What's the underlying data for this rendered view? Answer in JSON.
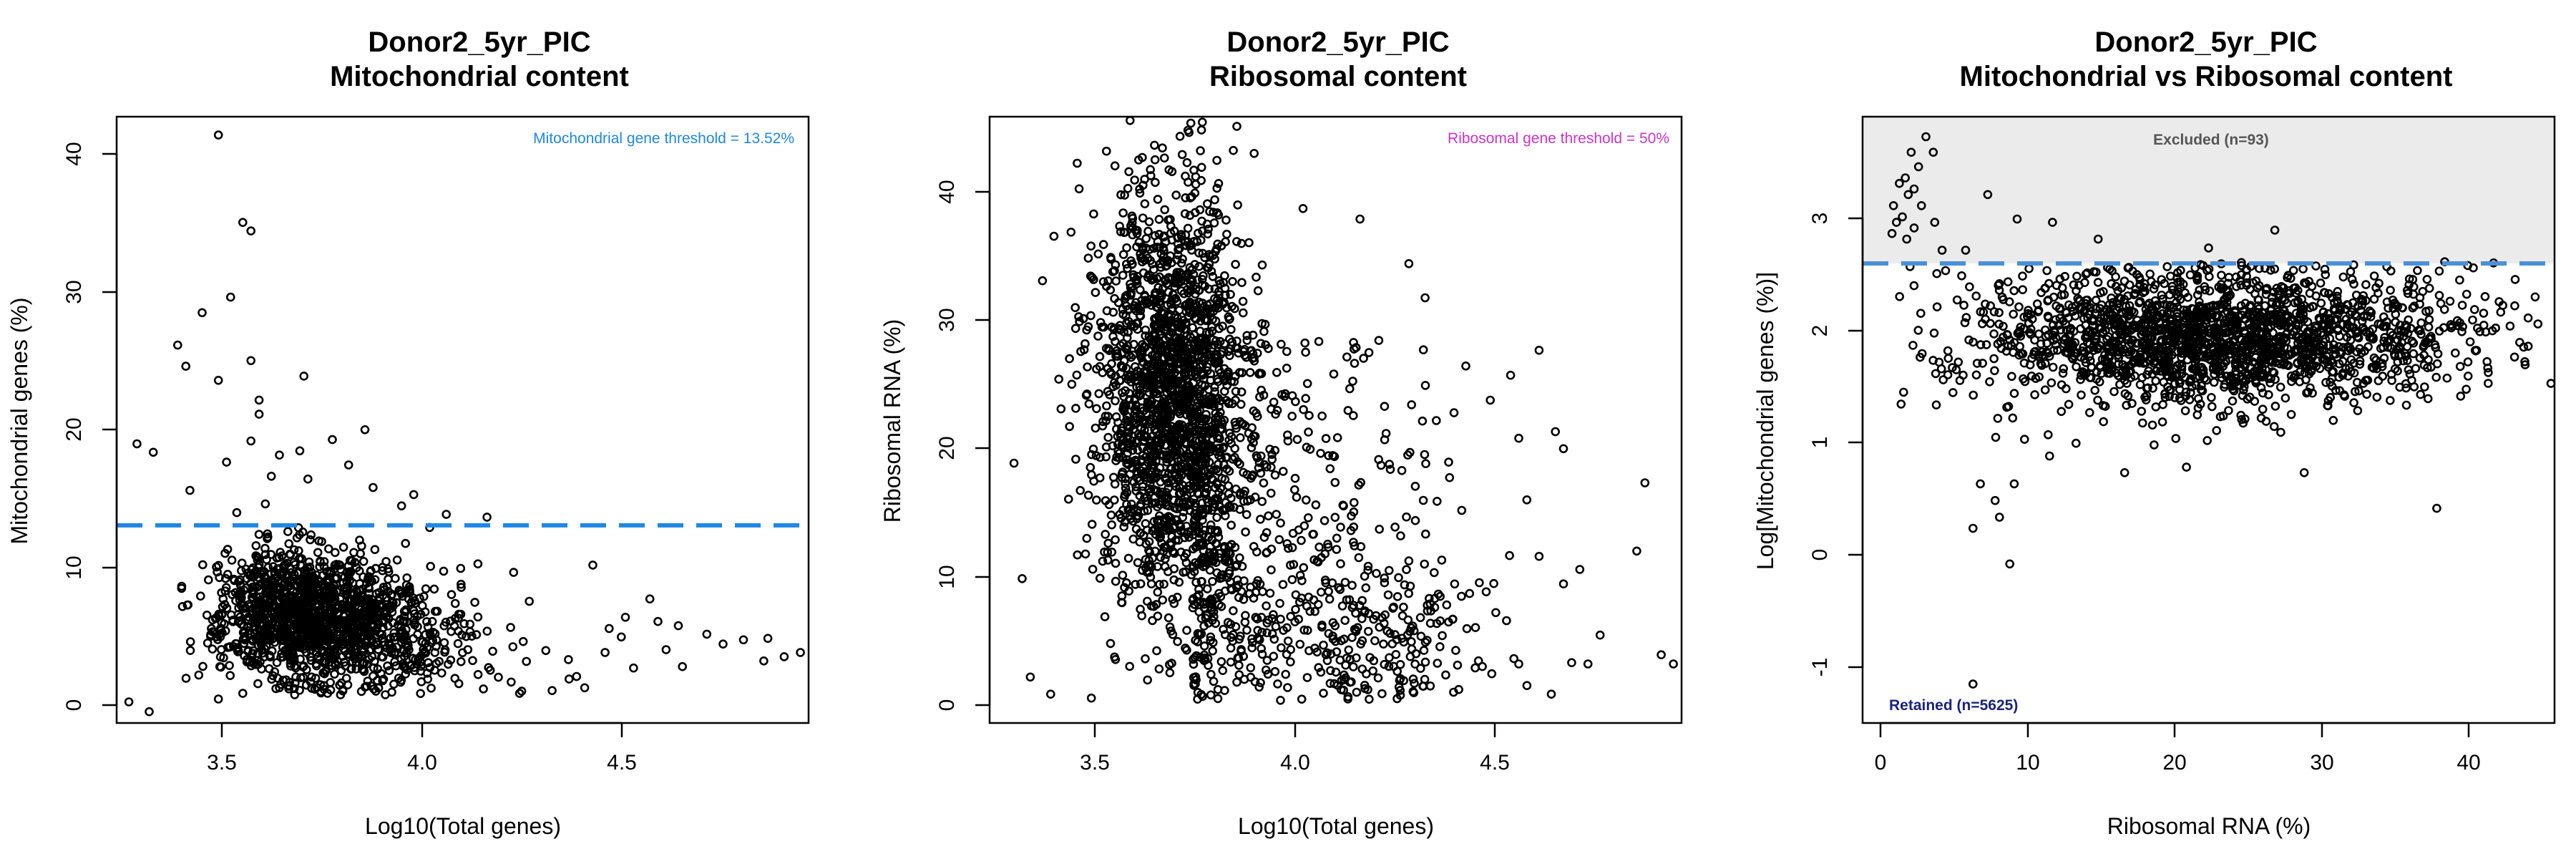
{
  "chart_data": [
    {
      "type": "scatter",
      "title": "Donor2_5yr_PIC",
      "subtitle": "Mitochondrial content",
      "xlabel": "Log10(Total genes)",
      "ylabel": "Mitochondrial genes (%)",
      "xlim": [
        3.25,
        4.95
      ],
      "ylim": [
        -0.5,
        42.5
      ],
      "xticks": [
        "3.5",
        "4.0",
        "4.5"
      ],
      "yticks": [
        "0",
        "10",
        "20",
        "30",
        "40"
      ],
      "threshold": {
        "y": 13.52,
        "label": "Mitochondrial gene threshold = 13.52%",
        "color": "#1E88E5"
      },
      "cloud": {
        "n": 1500,
        "x_center": 3.66,
        "x_spread": 0.2,
        "y_center": 7.3,
        "y_spread": 2.3
      },
      "points": [
        [
          3.5,
          41.2
        ],
        [
          3.56,
          35.0
        ],
        [
          3.58,
          34.4
        ],
        [
          3.53,
          29.7
        ],
        [
          3.46,
          28.6
        ],
        [
          3.4,
          26.3
        ],
        [
          3.58,
          25.2
        ],
        [
          3.42,
          24.8
        ],
        [
          3.71,
          24.1
        ],
        [
          3.5,
          23.8
        ],
        [
          3.6,
          22.4
        ],
        [
          3.6,
          21.4
        ],
        [
          3.86,
          20.3
        ],
        [
          3.3,
          19.3
        ],
        [
          3.58,
          19.5
        ],
        [
          3.78,
          19.6
        ],
        [
          3.34,
          18.7
        ],
        [
          3.65,
          18.5
        ],
        [
          3.7,
          18.8
        ],
        [
          3.52,
          18.0
        ],
        [
          3.82,
          17.8
        ],
        [
          3.63,
          17.0
        ],
        [
          3.72,
          16.8
        ],
        [
          3.43,
          16.0
        ],
        [
          3.88,
          16.2
        ],
        [
          3.98,
          15.7
        ],
        [
          4.16,
          14.1
        ],
        [
          4.06,
          14.3
        ],
        [
          3.95,
          14.9
        ],
        [
          3.28,
          1.0
        ],
        [
          3.33,
          0.3
        ],
        [
          3.5,
          1.2
        ],
        [
          3.56,
          1.6
        ],
        [
          3.65,
          2.0
        ],
        [
          3.8,
          1.5
        ],
        [
          4.24,
          1.6
        ],
        [
          4.32,
          1.8
        ],
        [
          4.4,
          2.0
        ],
        [
          4.42,
          10.7
        ],
        [
          4.56,
          8.3
        ],
        [
          4.49,
          5.6
        ],
        [
          4.58,
          6.7
        ],
        [
          4.63,
          6.4
        ],
        [
          4.7,
          5.8
        ],
        [
          4.74,
          5.1
        ],
        [
          4.79,
          5.4
        ],
        [
          4.85,
          5.5
        ],
        [
          4.84,
          3.9
        ],
        [
          4.89,
          4.2
        ],
        [
          4.93,
          4.5
        ],
        [
          4.5,
          7.0
        ],
        [
          4.45,
          4.5
        ],
        [
          4.52,
          3.4
        ],
        [
          4.6,
          4.7
        ],
        [
          4.64,
          3.5
        ],
        [
          4.36,
          4.0
        ],
        [
          4.46,
          6.2
        ],
        [
          4.38,
          2.8
        ]
      ]
    },
    {
      "type": "scatter",
      "title": "Donor2_5yr_PIC",
      "subtitle": "Ribosomal content",
      "xlabel": "Log10(Total genes)",
      "ylabel": "Ribosomal RNA (%)",
      "xlim": [
        3.25,
        4.95
      ],
      "ylim": [
        -1.2,
        45.0
      ],
      "xticks": [
        "3.5",
        "4.0",
        "4.5"
      ],
      "yticks": [
        "0",
        "10",
        "20",
        "30",
        "40"
      ],
      "threshold_label": {
        "text": "Ribosomal gene threshold = 50%",
        "color": "#CC33CC"
      },
      "cloud": {
        "n": 1800,
        "x_center": 3.69,
        "x_spread": 0.09,
        "y_center": 23.5,
        "y_spread": 8.0
      },
      "points": [
        [
          3.31,
          18.6
        ],
        [
          3.33,
          9.8
        ],
        [
          3.38,
          32.5
        ],
        [
          3.42,
          25.0
        ],
        [
          3.45,
          36.2
        ],
        [
          3.47,
          39.5
        ],
        [
          3.74,
          43.8
        ],
        [
          3.9,
          42.2
        ],
        [
          4.02,
          38.0
        ],
        [
          4.16,
          37.2
        ],
        [
          4.28,
          33.8
        ],
        [
          4.32,
          31.2
        ],
        [
          4.42,
          26.0
        ],
        [
          4.53,
          25.3
        ],
        [
          4.6,
          27.2
        ],
        [
          4.48,
          23.4
        ],
        [
          4.55,
          20.5
        ],
        [
          4.66,
          19.7
        ],
        [
          4.64,
          21.0
        ],
        [
          4.38,
          17.5
        ],
        [
          4.41,
          15.0
        ],
        [
          4.57,
          15.8
        ],
        [
          4.6,
          11.5
        ],
        [
          4.7,
          10.5
        ],
        [
          4.66,
          9.4
        ],
        [
          4.75,
          5.5
        ],
        [
          4.72,
          3.3
        ],
        [
          4.68,
          3.4
        ],
        [
          4.63,
          1.0
        ],
        [
          4.84,
          11.9
        ],
        [
          4.86,
          17.1
        ],
        [
          4.9,
          4.0
        ],
        [
          4.93,
          3.3
        ],
        [
          4.52,
          6.6
        ],
        [
          4.47,
          8.8
        ],
        [
          4.55,
          3.3
        ],
        [
          3.35,
          2.3
        ],
        [
          3.4,
          1.0
        ],
        [
          3.5,
          0.7
        ]
      ],
      "diffuse": {
        "n": 500,
        "x_range": [
          3.75,
          4.45
        ],
        "y_range": [
          0.5,
          28
        ]
      },
      "low_cluster": {
        "n": 200,
        "x_center": 4.18,
        "x_spread": 0.14,
        "y_center": 5.0,
        "y_spread": 3.2
      }
    },
    {
      "type": "scatter",
      "title": "Donor2_5yr_PIC",
      "subtitle": "Mitochondrial vs Ribosomal content",
      "xlabel": "Ribosomal RNA (%)",
      "ylabel": "Log[Mitochondrial genes (%)]",
      "xlim": [
        -1.5,
        45.5
      ],
      "ylim": [
        -1.55,
        3.9
      ],
      "xticks": [
        "0",
        "10",
        "20",
        "30",
        "40"
      ],
      "yticks": [
        "-1",
        "0",
        "1",
        "2",
        "3"
      ],
      "threshold": {
        "y": 2.6,
        "color": "#4A90D9"
      },
      "excluded_region": {
        "label": "Excluded (n=93)",
        "color": "#EBEBEB"
      },
      "retained_label": {
        "text": "Retained (n=5625)",
        "color": "#1A237E"
      },
      "cloud": {
        "n": 1900,
        "x_center": 22.5,
        "x_spread": 8.0,
        "y_center": 1.92,
        "y_spread": 0.3
      },
      "points": [
        [
          2.8,
          3.72
        ],
        [
          3.3,
          3.58
        ],
        [
          1.8,
          3.58
        ],
        [
          2.3,
          3.45
        ],
        [
          1.4,
          3.35
        ],
        [
          1.0,
          3.3
        ],
        [
          2.0,
          3.25
        ],
        [
          1.6,
          3.2
        ],
        [
          2.5,
          3.1
        ],
        [
          0.6,
          3.1
        ],
        [
          1.2,
          3.0
        ],
        [
          0.8,
          2.95
        ],
        [
          2.0,
          2.9
        ],
        [
          3.4,
          2.95
        ],
        [
          0.5,
          2.85
        ],
        [
          1.5,
          2.8
        ],
        [
          7.0,
          3.2
        ],
        [
          9.0,
          2.98
        ],
        [
          11.4,
          2.95
        ],
        [
          26.5,
          2.88
        ],
        [
          14.5,
          2.8
        ],
        [
          22.0,
          2.72
        ],
        [
          5.5,
          2.7
        ],
        [
          3.9,
          2.7
        ],
        [
          6.0,
          0.2
        ],
        [
          7.8,
          0.3
        ],
        [
          8.5,
          -0.12
        ],
        [
          37.5,
          0.38
        ],
        [
          6.0,
          -1.2
        ],
        [
          43.5,
          1.67
        ],
        [
          42.8,
          2.2
        ],
        [
          39.5,
          1.45
        ],
        [
          40.2,
          1.8
        ],
        [
          41.0,
          1.6
        ],
        [
          41.5,
          2.0
        ],
        [
          38.2,
          1.55
        ],
        [
          16.3,
          0.7
        ],
        [
          18.3,
          0.95
        ],
        [
          20.5,
          0.75
        ],
        [
          28.5,
          0.7
        ],
        [
          7.5,
          0.45
        ],
        [
          8.8,
          0.6
        ],
        [
          6.5,
          0.6
        ],
        [
          11.2,
          0.85
        ],
        [
          9.5,
          1.0
        ],
        [
          12.0,
          1.25
        ]
      ]
    }
  ]
}
